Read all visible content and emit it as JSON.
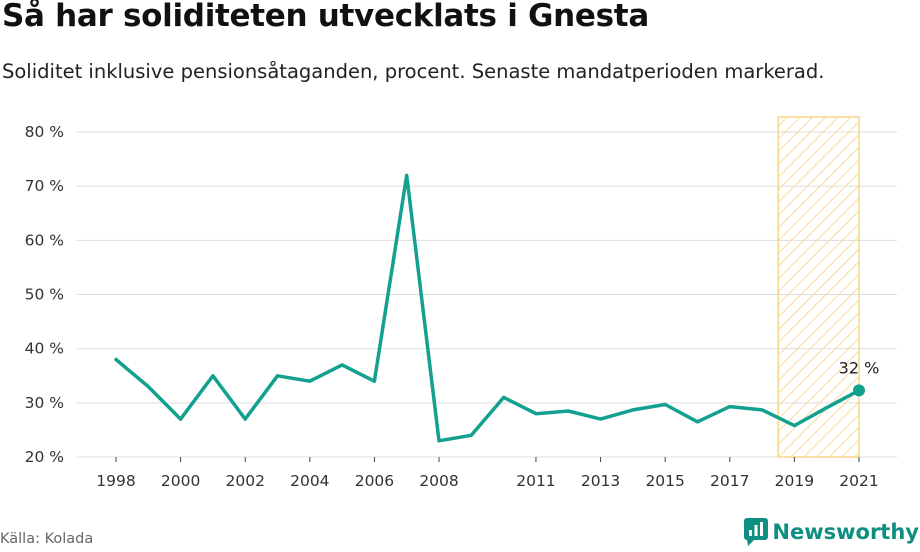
{
  "header": {
    "title": "Så har soliditeten utvecklats i Gnesta",
    "subtitle": "Soliditet inklusive pensionsåtaganden, procent. Senaste mandatperioden markerad."
  },
  "footer": {
    "source": "Källa: Kolada",
    "brand": "Newsworthy"
  },
  "colors": {
    "line": "#12a08f",
    "highlight_stroke": "#f5d58a",
    "highlight_hatch": "#f6dc9c",
    "grid": "#dddddd",
    "brand": "#0f8f82"
  },
  "chart_data": {
    "type": "line",
    "title": "Så har soliditeten utvecklats i Gnesta",
    "subtitle": "Soliditet inklusive pensionsåtaganden, procent. Senaste mandatperioden markerad.",
    "xlabel": "",
    "ylabel": "",
    "x": [
      1998,
      1999,
      2000,
      2001,
      2002,
      2003,
      2004,
      2005,
      2006,
      2007,
      2008,
      2009,
      2010,
      2011,
      2012,
      2013,
      2014,
      2015,
      2016,
      2017,
      2018,
      2019,
      2020,
      2021
    ],
    "series": [
      {
        "values": [
          38,
          33,
          27,
          35,
          27,
          35,
          34,
          37,
          34,
          72,
          23,
          24,
          31,
          28,
          28.5,
          27,
          28.7,
          29.7,
          26.5,
          29.3,
          28.7,
          25.8,
          29.1,
          32.3
        ]
      }
    ],
    "x_ticks": [
      1998,
      2000,
      2002,
      2004,
      2006,
      2008,
      2011,
      2013,
      2015,
      2017,
      2019,
      2021
    ],
    "y_ticks": [
      20,
      30,
      40,
      50,
      60,
      70,
      80
    ],
    "y_tick_labels": [
      "20 %",
      "30 %",
      "40 %",
      "50 %",
      "60 %",
      "70 %",
      "80 %"
    ],
    "xlim": [
      1998,
      2021
    ],
    "ylim": [
      20,
      80
    ],
    "grid": true,
    "highlight_range": [
      2018.5,
      2021
    ],
    "annotation": {
      "x": 2021,
      "y": 32.3,
      "label": "32 %"
    },
    "legend": "none"
  }
}
